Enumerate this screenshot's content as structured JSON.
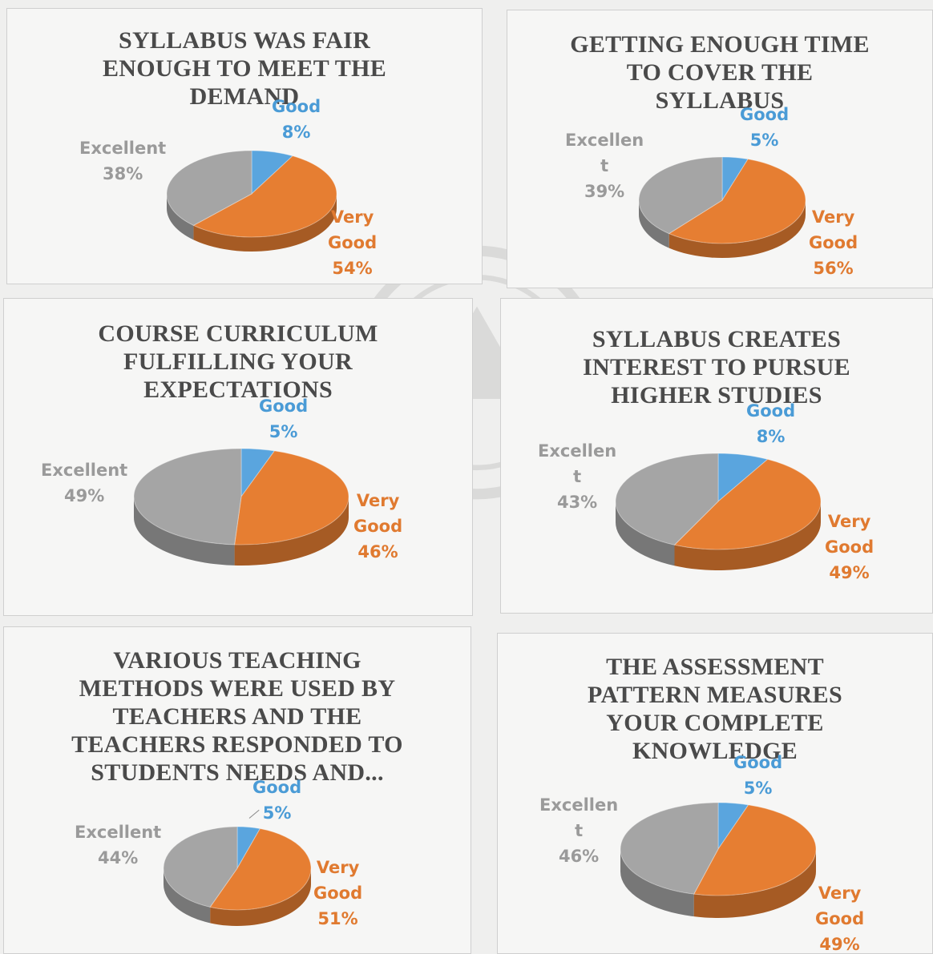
{
  "colors": {
    "good": "#5aa5de",
    "very_good": "#e67e32",
    "excellent": "#a5a5a5"
  },
  "chart_data": [
    {
      "type": "pie",
      "title": "SYLLABUS WAS FAIR ENOUGH TO MEET THE DEMAND",
      "title_lines": [
        "SYLLABUS WAS FAIR",
        "ENOUGH TO MEET THE",
        "DEMAND"
      ],
      "slices": [
        {
          "label": "Good",
          "value": 8,
          "display": "8%",
          "label_lines": [
            "Good"
          ]
        },
        {
          "label": "Very Good",
          "value": 54,
          "display": "54%",
          "label_lines": [
            "Very",
            "Good"
          ]
        },
        {
          "label": "Excellent",
          "value": 38,
          "display": "38%",
          "label_lines": [
            "Excellent"
          ]
        }
      ]
    },
    {
      "type": "pie",
      "title": "GETTING ENOUGH TIME TO COVER THE SYLLABUS",
      "title_lines": [
        "GETTING ENOUGH TIME",
        "TO COVER THE",
        "SYLLABUS"
      ],
      "slices": [
        {
          "label": "Good",
          "value": 5,
          "display": "5%",
          "label_lines": [
            "Good"
          ]
        },
        {
          "label": "Very Good",
          "value": 56,
          "display": "56%",
          "label_lines": [
            "Very",
            "Good"
          ]
        },
        {
          "label": "Excellent",
          "value": 39,
          "display": "39%",
          "label_lines": [
            "Excellen",
            "t"
          ]
        }
      ]
    },
    {
      "type": "pie",
      "title": "COURSE CURRICULUM FULFILLING YOUR EXPECTATIONS",
      "title_lines": [
        "COURSE CURRICULUM",
        "FULFILLING YOUR",
        "EXPECTATIONS"
      ],
      "slices": [
        {
          "label": "Good",
          "value": 5,
          "display": "5%",
          "label_lines": [
            "Good"
          ]
        },
        {
          "label": "Very Good",
          "value": 46,
          "display": "46%",
          "label_lines": [
            "Very",
            "Good"
          ]
        },
        {
          "label": "Excellent",
          "value": 49,
          "display": "49%",
          "label_lines": [
            "Excellent"
          ]
        }
      ]
    },
    {
      "type": "pie",
      "title": "SYLLABUS CREATES INTEREST TO PURSUE HIGHER STUDIES",
      "title_lines": [
        "SYLLABUS CREATES",
        "INTEREST TO PURSUE",
        "HIGHER STUDIES"
      ],
      "slices": [
        {
          "label": "Good",
          "value": 8,
          "display": "8%",
          "label_lines": [
            "Good"
          ]
        },
        {
          "label": "Very Good",
          "value": 49,
          "display": "49%",
          "label_lines": [
            "Very",
            "Good"
          ]
        },
        {
          "label": "Excellent",
          "value": 43,
          "display": "43%",
          "label_lines": [
            "Excellen",
            "t"
          ]
        }
      ]
    },
    {
      "type": "pie",
      "title": "VARIOUS TEACHING METHODS WERE USED BY TEACHERS AND THE TEACHERS RESPONDED TO STUDENTS NEEDS AND...",
      "title_lines": [
        "VARIOUS TEACHING",
        "METHODS WERE USED BY",
        "TEACHERS AND THE",
        "TEACHERS RESPONDED TO",
        "STUDENTS NEEDS AND..."
      ],
      "slices": [
        {
          "label": "Good",
          "value": 5,
          "display": "5%",
          "label_lines": [
            "Good"
          ]
        },
        {
          "label": "Very Good",
          "value": 51,
          "display": "51%",
          "label_lines": [
            "Very",
            "Good"
          ]
        },
        {
          "label": "Excellent",
          "value": 44,
          "display": "44%",
          "label_lines": [
            "Excellent"
          ]
        }
      ]
    },
    {
      "type": "pie",
      "title": "THE ASSESSMENT PATTERN MEASURES YOUR COMPLETE KNOWLEDGE",
      "title_lines": [
        "THE ASSESSMENT",
        "PATTERN MEASURES",
        "YOUR COMPLETE",
        "KNOWLEDGE"
      ],
      "slices": [
        {
          "label": "Good",
          "value": 5,
          "display": "5%",
          "label_lines": [
            "Good"
          ]
        },
        {
          "label": "Very Good",
          "value": 49,
          "display": "49%",
          "label_lines": [
            "Very",
            "Good"
          ]
        },
        {
          "label": "Excellent",
          "value": 46,
          "display": "46%",
          "label_lines": [
            "Excellen",
            "t"
          ]
        }
      ]
    }
  ]
}
